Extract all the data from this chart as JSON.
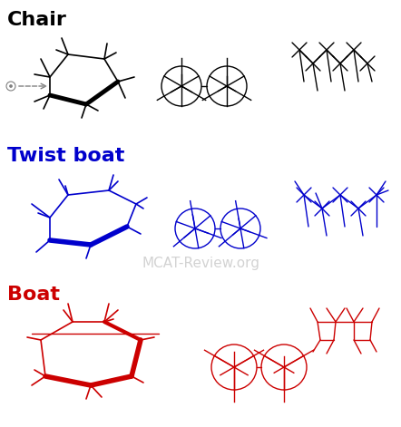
{
  "title": "",
  "watermark": "MCAT-Review.org",
  "watermark_color": "#c0c0c0",
  "chair_color": "black",
  "twist_color": "#0000cc",
  "boat_color": "#cc0000",
  "bg_color": "white",
  "labels": {
    "chair": "Chair",
    "twist": "Twist boat",
    "boat": "Boat"
  }
}
